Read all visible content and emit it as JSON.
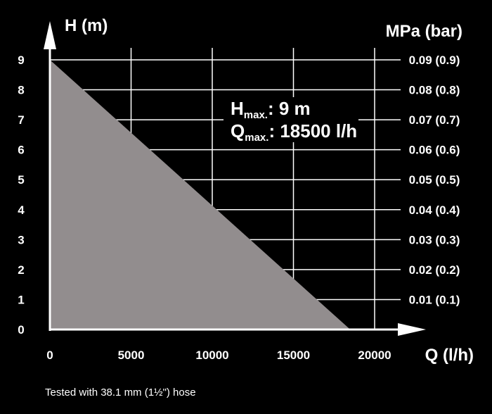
{
  "chart_data": {
    "type": "area",
    "xlabel": "Q (l/h)",
    "ylabel": "H (m)",
    "y2label": "MPa (bar)",
    "x_ticks": [
      0,
      5000,
      10000,
      15000,
      20000
    ],
    "y_ticks": [
      0,
      1,
      2,
      3,
      4,
      5,
      6,
      7,
      8,
      9
    ],
    "y2_ticks": [
      "0.01 (0.1)",
      "0.02 (0.2)",
      "0.03 (0.3)",
      "0.04 (0.4)",
      "0.05 (0.5)",
      "0.06 (0.6)",
      "0.07 (0.7)",
      "0.08 (0.8)",
      "0.09 (0.9)"
    ],
    "xlim": [
      0,
      20000
    ],
    "ylim": [
      0,
      9
    ],
    "grid": true,
    "series": [
      {
        "x": [
          0,
          18500
        ],
        "y": [
          9,
          0
        ]
      }
    ],
    "annotations": {
      "hmax_main": "H",
      "hmax_sub": "max.",
      "hmax_value": ": 9 m",
      "qmax_main": "Q",
      "qmax_sub": "max.",
      "qmax_value": ": 18500 l/h"
    },
    "footnote": "Tested with 38.1 mm (1½\") hose"
  },
  "colors": {
    "background": "#000000",
    "fill": "#928d8e",
    "grid": "#ffffff",
    "text": "#ffffff"
  }
}
